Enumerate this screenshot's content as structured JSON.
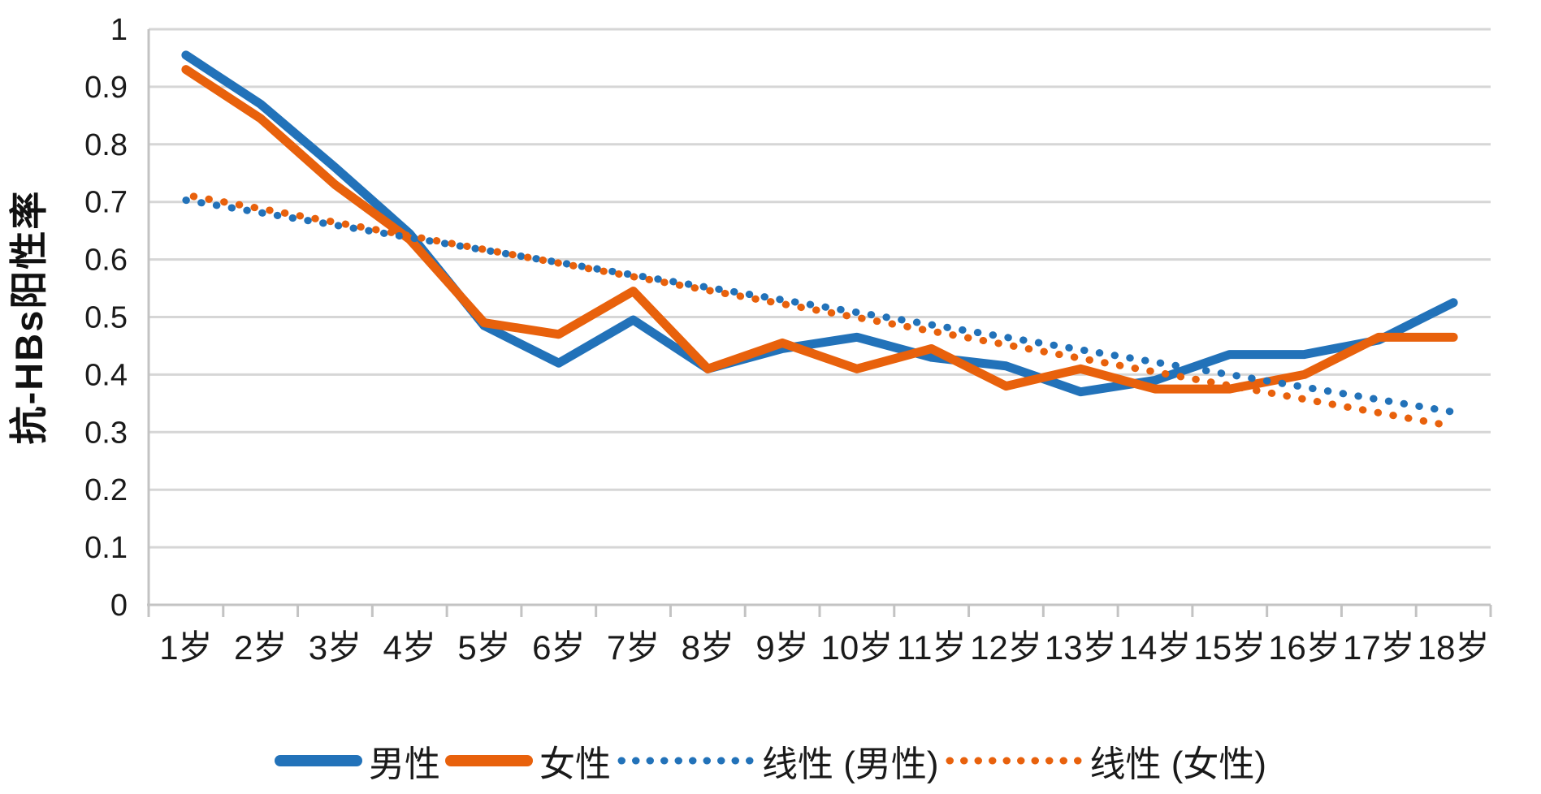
{
  "chart_data": {
    "type": "line",
    "ylabel": "抗-HBs阳性率",
    "ylim": [
      0,
      1
    ],
    "ytick_step": 0.1,
    "ytick_labels": [
      "0",
      "0.1",
      "0.2",
      "0.3",
      "0.4",
      "0.5",
      "0.6",
      "0.7",
      "0.8",
      "0.9",
      "1"
    ],
    "x_categories": [
      "1岁",
      "2岁",
      "3岁",
      "4岁",
      "5岁",
      "6岁",
      "7岁",
      "8岁",
      "9岁",
      "10岁",
      "11岁",
      "12岁",
      "13岁",
      "14岁",
      "15岁",
      "16岁",
      "17岁",
      "18岁"
    ],
    "grid": "horizontal",
    "legend_position": "bottom",
    "series": [
      {
        "name": "男性",
        "kind": "solid",
        "color": "#2272b9",
        "values": [
          0.955,
          0.87,
          0.76,
          0.645,
          0.485,
          0.42,
          0.495,
          0.41,
          0.445,
          0.465,
          0.43,
          0.415,
          0.37,
          0.39,
          0.435,
          0.435,
          0.46,
          0.525
        ]
      },
      {
        "name": "女性",
        "kind": "solid",
        "color": "#e8610c",
        "values": [
          0.93,
          0.845,
          0.73,
          0.635,
          0.49,
          0.47,
          0.545,
          0.41,
          0.455,
          0.41,
          0.445,
          0.38,
          0.41,
          0.375,
          0.375,
          0.4,
          0.465,
          0.465
        ]
      },
      {
        "name": "线性 (男性)",
        "kind": "trend",
        "color": "#2272b9",
        "trend_start": 0.703,
        "trend_end": 0.335
      },
      {
        "name": "线性 (女性)",
        "kind": "trend",
        "color": "#e8610c",
        "trend_start": 0.712,
        "trend_end": 0.31
      }
    ],
    "colors": {
      "male": "#2272b9",
      "female": "#e8610c",
      "gridline": "#d6d6d6",
      "axis": "#c3c3c3",
      "text": "#1a1a1a"
    }
  }
}
